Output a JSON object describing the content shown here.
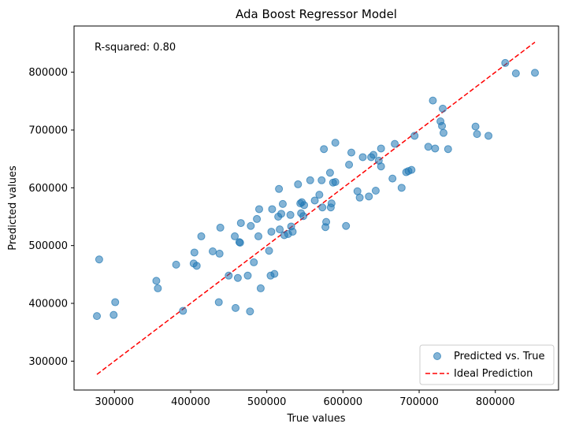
{
  "chart_data": {
    "type": "scatter",
    "title": "Ada Boost Regressor Model",
    "xlabel": "True values",
    "ylabel": "Predicted values",
    "xlim": [
      247000,
      883000
    ],
    "ylim": [
      250000,
      880000
    ],
    "x_ticks": [
      300000,
      400000,
      500000,
      600000,
      700000,
      800000
    ],
    "y_ticks": [
      300000,
      400000,
      500000,
      600000,
      700000,
      800000
    ],
    "x_tick_labels": [
      "300000",
      "400000",
      "500000",
      "600000",
      "700000",
      "800000"
    ],
    "y_tick_labels": [
      "300000",
      "400000",
      "500000",
      "600000",
      "700000",
      "800000"
    ],
    "grid": false,
    "legend_position": "lower-right",
    "annotation": "R-squared: 0.80",
    "series": [
      {
        "name": "Predicted vs. True",
        "kind": "scatter",
        "color": "#1f77b4",
        "points": [
          [
            277000,
            378000
          ],
          [
            280000,
            476000
          ],
          [
            299000,
            380000
          ],
          [
            301000,
            402000
          ],
          [
            355000,
            439000
          ],
          [
            357000,
            426000
          ],
          [
            381000,
            467000
          ],
          [
            390000,
            387000
          ],
          [
            404000,
            469000
          ],
          [
            405000,
            488000
          ],
          [
            408000,
            465000
          ],
          [
            414000,
            516000
          ],
          [
            429000,
            490000
          ],
          [
            437000,
            402000
          ],
          [
            438000,
            486000
          ],
          [
            439000,
            531000
          ],
          [
            450000,
            448000
          ],
          [
            458000,
            516000
          ],
          [
            459000,
            392000
          ],
          [
            462000,
            444000
          ],
          [
            464000,
            506000
          ],
          [
            465000,
            505000
          ],
          [
            466000,
            539000
          ],
          [
            475000,
            448000
          ],
          [
            478000,
            386000
          ],
          [
            479000,
            534000
          ],
          [
            483000,
            471000
          ],
          [
            487000,
            546000
          ],
          [
            489000,
            516000
          ],
          [
            490000,
            563000
          ],
          [
            492000,
            426000
          ],
          [
            503000,
            491000
          ],
          [
            505000,
            448000
          ],
          [
            506000,
            524000
          ],
          [
            507000,
            563000
          ],
          [
            510000,
            451000
          ],
          [
            515000,
            550000
          ],
          [
            516000,
            598000
          ],
          [
            517000,
            528000
          ],
          [
            519000,
            555000
          ],
          [
            521000,
            572000
          ],
          [
            523000,
            518000
          ],
          [
            528000,
            520000
          ],
          [
            531000,
            553000
          ],
          [
            532000,
            533000
          ],
          [
            534000,
            524000
          ],
          [
            541000,
            606000
          ],
          [
            544000,
            573000
          ],
          [
            546000,
            575000
          ],
          [
            545000,
            556000
          ],
          [
            548000,
            551000
          ],
          [
            549000,
            570000
          ],
          [
            557000,
            613000
          ],
          [
            563000,
            578000
          ],
          [
            569000,
            588000
          ],
          [
            572000,
            613000
          ],
          [
            573000,
            566000
          ],
          [
            575000,
            667000
          ],
          [
            577000,
            532000
          ],
          [
            578000,
            541000
          ],
          [
            583000,
            626000
          ],
          [
            584000,
            566000
          ],
          [
            585000,
            573000
          ],
          [
            587000,
            609000
          ],
          [
            590000,
            678000
          ],
          [
            590000,
            610000
          ],
          [
            604000,
            534000
          ],
          [
            608000,
            640000
          ],
          [
            611000,
            661000
          ],
          [
            619000,
            594000
          ],
          [
            622000,
            583000
          ],
          [
            626000,
            653000
          ],
          [
            634000,
            585000
          ],
          [
            637000,
            653000
          ],
          [
            640000,
            657000
          ],
          [
            643000,
            595000
          ],
          [
            647000,
            647000
          ],
          [
            650000,
            668000
          ],
          [
            650000,
            637000
          ],
          [
            665000,
            616000
          ],
          [
            668000,
            676000
          ],
          [
            677000,
            600000
          ],
          [
            683000,
            627000
          ],
          [
            686000,
            629000
          ],
          [
            690000,
            631000
          ],
          [
            694000,
            690000
          ],
          [
            712000,
            671000
          ],
          [
            718000,
            751000
          ],
          [
            721000,
            668000
          ],
          [
            728000,
            715000
          ],
          [
            730000,
            707000
          ],
          [
            731000,
            737000
          ],
          [
            732000,
            695000
          ],
          [
            738000,
            667000
          ],
          [
            774000,
            706000
          ],
          [
            776000,
            693000
          ],
          [
            791000,
            690000
          ],
          [
            813000,
            816000
          ],
          [
            827000,
            798000
          ],
          [
            852000,
            799000
          ]
        ]
      },
      {
        "name": "Ideal Prediction",
        "kind": "line",
        "style": "dashed",
        "color": "#ff0000",
        "x": [
          277000,
          852000
        ],
        "y": [
          277000,
          852000
        ]
      }
    ]
  }
}
